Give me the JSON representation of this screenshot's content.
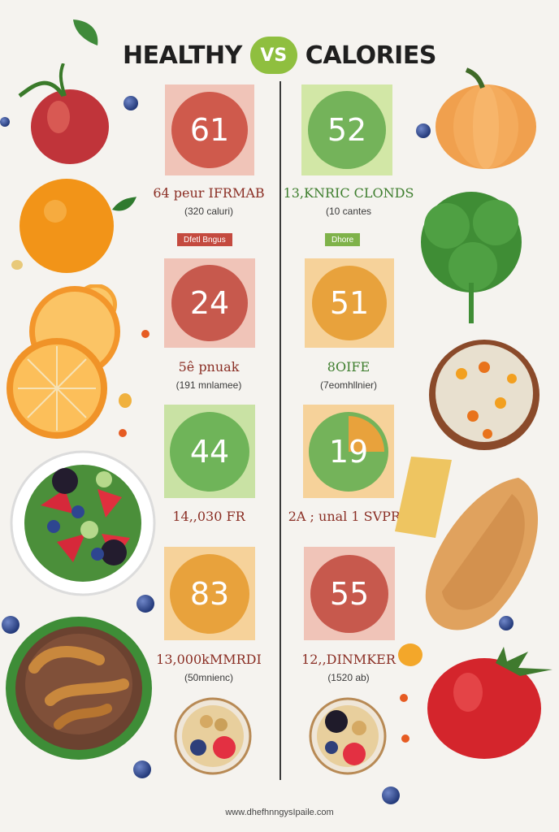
{
  "title": {
    "left": "HEALTHY",
    "vs": "VS",
    "right": "CALORIES"
  },
  "colors": {
    "red": "#c7594d",
    "green": "#74b35a",
    "orange": "#e8a23c",
    "accent": "#8fbf3f"
  },
  "left_column": [
    {
      "value": "61",
      "label": "64 peur IFRMAB",
      "sub": "(320 caluri)",
      "tag": "Dfetl Bngus"
    },
    {
      "value": "24",
      "label": "5ê pnuak",
      "sub": "(191 mnlamee)"
    },
    {
      "value": "44",
      "label": "14,,030 FR",
      "sub": ""
    },
    {
      "value": "83",
      "label": "13,000kMMRDI",
      "sub": "(50mnienc)"
    }
  ],
  "right_column": [
    {
      "value": "52",
      "label": "13,KNRIC CLONDS",
      "sub": "(10 cantes",
      "tag": "Dhore"
    },
    {
      "value": "51",
      "label": "8OIFE",
      "sub": "(7eomhllnier)"
    },
    {
      "value": "19",
      "label": "2A ; unal 1 SVPRh",
      "sub": ""
    },
    {
      "value": "55",
      "label": "12,,DINMKER",
      "sub": "(1520 ab)"
    }
  ],
  "footer": "www.dhefhnngysIpaile.com"
}
